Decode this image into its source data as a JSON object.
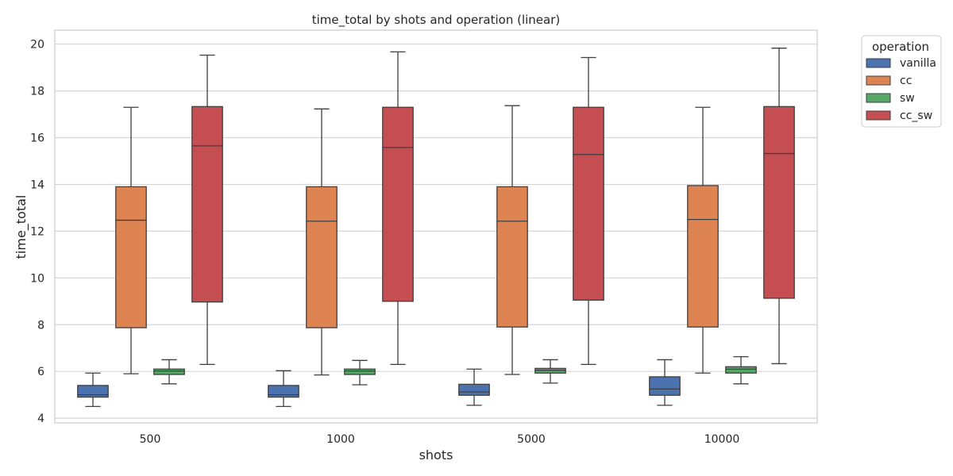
{
  "chart_data": {
    "type": "box",
    "title": "time_total by shots and operation (linear)",
    "xlabel": "shots",
    "ylabel": "time_total",
    "categories": [
      "500",
      "1000",
      "5000",
      "10000"
    ],
    "ylim": [
      3.8,
      20.6
    ],
    "yticks": [
      4,
      6,
      8,
      10,
      12,
      14,
      16,
      18,
      20
    ],
    "grid": true,
    "legend": {
      "title": "operation",
      "position": "outside-top-right"
    },
    "series": [
      {
        "name": "vanilla",
        "color": "#4c72b0",
        "boxes": [
          {
            "whisker_low": 4.5,
            "q1": 4.9,
            "median": 5.0,
            "q3": 5.4,
            "whisker_high": 5.93
          },
          {
            "whisker_low": 4.5,
            "q1": 4.9,
            "median": 5.0,
            "q3": 5.4,
            "whisker_high": 6.03
          },
          {
            "whisker_low": 4.55,
            "q1": 4.98,
            "median": 5.12,
            "q3": 5.45,
            "whisker_high": 6.1
          },
          {
            "whisker_low": 4.55,
            "q1": 4.98,
            "median": 5.25,
            "q3": 5.77,
            "whisker_high": 6.5
          }
        ]
      },
      {
        "name": "cc",
        "color": "#dd8452",
        "boxes": [
          {
            "whisker_low": 5.9,
            "q1": 7.87,
            "median": 12.47,
            "q3": 13.9,
            "whisker_high": 17.3
          },
          {
            "whisker_low": 5.85,
            "q1": 7.87,
            "median": 12.43,
            "q3": 13.9,
            "whisker_high": 17.23
          },
          {
            "whisker_low": 5.87,
            "q1": 7.9,
            "median": 12.43,
            "q3": 13.9,
            "whisker_high": 17.37
          },
          {
            "whisker_low": 5.93,
            "q1": 7.9,
            "median": 12.5,
            "q3": 13.95,
            "whisker_high": 17.3
          }
        ]
      },
      {
        "name": "sw",
        "color": "#55a868",
        "boxes": [
          {
            "whisker_low": 5.47,
            "q1": 5.87,
            "median": 6.02,
            "q3": 6.1,
            "whisker_high": 6.5
          },
          {
            "whisker_low": 5.43,
            "q1": 5.87,
            "median": 6.02,
            "q3": 6.1,
            "whisker_high": 6.47
          },
          {
            "whisker_low": 5.5,
            "q1": 5.93,
            "median": 6.05,
            "q3": 6.13,
            "whisker_high": 6.5
          },
          {
            "whisker_low": 5.47,
            "q1": 5.93,
            "median": 6.1,
            "q3": 6.2,
            "whisker_high": 6.63
          }
        ]
      },
      {
        "name": "cc_sw",
        "color": "#c44e52",
        "boxes": [
          {
            "whisker_low": 6.3,
            "q1": 8.97,
            "median": 15.65,
            "q3": 17.33,
            "whisker_high": 19.53
          },
          {
            "whisker_low": 6.3,
            "q1": 9.0,
            "median": 15.58,
            "q3": 17.3,
            "whisker_high": 19.67
          },
          {
            "whisker_low": 6.3,
            "q1": 9.05,
            "median": 15.28,
            "q3": 17.3,
            "whisker_high": 19.43
          },
          {
            "whisker_low": 6.33,
            "q1": 9.13,
            "median": 15.32,
            "q3": 17.33,
            "whisker_high": 19.83
          }
        ]
      }
    ]
  }
}
